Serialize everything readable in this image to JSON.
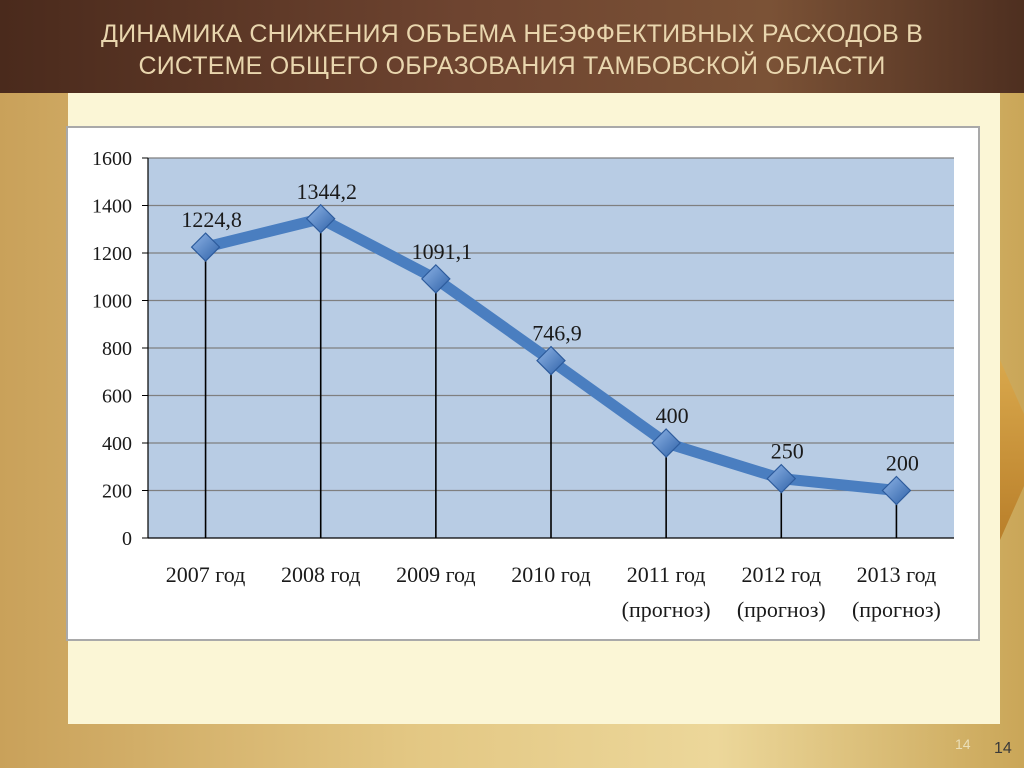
{
  "slide": {
    "title_line1": "ДИНАМИКА СНИЖЕНИЯ ОБЪЕМА НЕЭФФЕКТИВНЫХ РАСХОДОВ В",
    "title_line2": "СИСТЕМЕ ОБЩЕГО ОБРАЗОВАНИЯ ТАМБОВСКОЙ ОБЛАСТИ",
    "page_number": "14",
    "page_number_faint": "14"
  },
  "colors": {
    "plot_area": "#b8cce4",
    "line": "#4a7ec0",
    "marker": "#4a7ec0",
    "gridline": "#7f7f7f",
    "drop_line": "#000000",
    "text": "#1a1a1a"
  },
  "chart_data": {
    "type": "line",
    "categories": [
      [
        "2007 год"
      ],
      [
        "2008 год"
      ],
      [
        "2009 год"
      ],
      [
        "2010 год"
      ],
      [
        "2011 год",
        "(прогноз)"
      ],
      [
        "2012 год",
        "(прогноз)"
      ],
      [
        "2013 год",
        "(прогноз)"
      ]
    ],
    "values": [
      1224.8,
      1344.2,
      1091.1,
      746.9,
      400,
      250,
      200
    ],
    "data_labels": [
      "1224,8",
      "1344,2",
      "1091,1",
      "746,9",
      "400",
      "250",
      "200"
    ],
    "y_ticks": [
      "0",
      "200",
      "400",
      "600",
      "800",
      "1000",
      "1200",
      "1400",
      "1600"
    ],
    "ylim": [
      0,
      1600
    ],
    "grid": true,
    "drop_lines": true,
    "marker": "diamond",
    "legend": "none"
  }
}
